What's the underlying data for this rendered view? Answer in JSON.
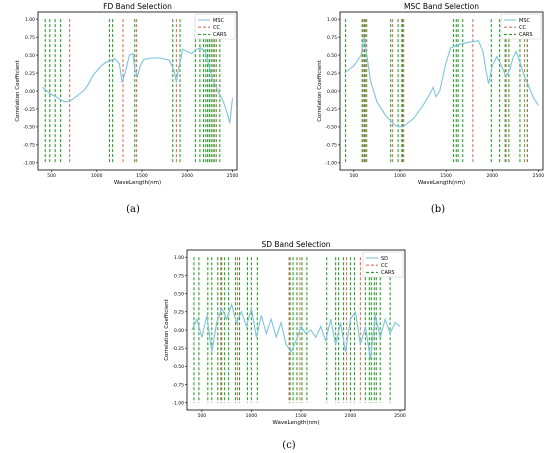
{
  "chart_data": [
    {
      "panel": "(a)",
      "type": "line",
      "title": "FD Band Selection",
      "xlabel": "WaveLength(nm)",
      "ylabel": "Correlation Coefficient",
      "xlim": [
        350,
        2550
      ],
      "ylim": [
        -1.1,
        1.1
      ],
      "xticks": [
        500,
        1000,
        1500,
        2000,
        2500
      ],
      "yticks": [
        1.0,
        0.75,
        0.5,
        0.25,
        0.0,
        -0.25,
        -0.5,
        -0.75,
        -1.0
      ],
      "legend": "top-right",
      "grid": false,
      "series": [
        {
          "name": "MSC",
          "kind": "curve",
          "color": "#7ec4dc",
          "points": [
            [
              400,
              0.05
            ],
            [
              450,
              0.0
            ],
            [
              500,
              -0.05
            ],
            [
              550,
              -0.08
            ],
            [
              600,
              -0.12
            ],
            [
              650,
              -0.15
            ],
            [
              700,
              -0.14
            ],
            [
              750,
              -0.1
            ],
            [
              800,
              -0.05
            ],
            [
              850,
              0.0
            ],
            [
              900,
              0.08
            ],
            [
              950,
              0.2
            ],
            [
              1000,
              0.28
            ],
            [
              1050,
              0.35
            ],
            [
              1100,
              0.4
            ],
            [
              1150,
              0.42
            ],
            [
              1200,
              0.45
            ],
            [
              1250,
              0.38
            ],
            [
              1280,
              0.12
            ],
            [
              1320,
              0.28
            ],
            [
              1360,
              0.5
            ],
            [
              1400,
              0.52
            ],
            [
              1420,
              0.3
            ],
            [
              1450,
              0.2
            ],
            [
              1480,
              0.35
            ],
            [
              1520,
              0.44
            ],
            [
              1600,
              0.46
            ],
            [
              1700,
              0.46
            ],
            [
              1800,
              0.43
            ],
            [
              1850,
              0.3
            ],
            [
              1880,
              0.12
            ],
            [
              1900,
              0.3
            ],
            [
              1930,
              0.45
            ],
            [
              1950,
              0.58
            ],
            [
              2000,
              0.55
            ],
            [
              2050,
              0.52
            ],
            [
              2100,
              0.58
            ],
            [
              2150,
              0.6
            ],
            [
              2200,
              0.55
            ],
            [
              2250,
              0.3
            ],
            [
              2280,
              0.15
            ],
            [
              2320,
              0.05
            ],
            [
              2360,
              -0.05
            ],
            [
              2400,
              -0.15
            ],
            [
              2440,
              -0.3
            ],
            [
              2470,
              -0.45
            ],
            [
              2500,
              -0.1
            ]
          ]
        },
        {
          "name": "CC",
          "kind": "vlines",
          "color": "#d8745a",
          "dashed": true,
          "x": [
            700,
            1290,
            1440,
            1880,
            2300
          ]
        },
        {
          "name": "CARS",
          "kind": "vlines",
          "color": "#2e9c30",
          "dashed": true,
          "x": [
            430,
            480,
            540,
            600,
            1140,
            1175,
            1420,
            1840,
            1920,
            2090,
            2140,
            2180,
            2205,
            2225,
            2245,
            2265,
            2285,
            2320,
            2360
          ]
        }
      ]
    },
    {
      "panel": "(b)",
      "type": "line",
      "title": "MSC Band Selection",
      "xlabel": "WaveLength(nm)",
      "ylabel": "Correlation Coefficient",
      "xlim": [
        350,
        2550
      ],
      "ylim": [
        -1.1,
        1.1
      ],
      "xticks": [
        500,
        1000,
        1500,
        2000,
        2500
      ],
      "yticks": [
        1.0,
        0.75,
        0.5,
        0.25,
        0.0,
        -0.25,
        -0.5,
        -0.75,
        -1.0
      ],
      "legend": "top-right",
      "grid": false,
      "series": [
        {
          "name": "MSC",
          "kind": "curve",
          "color": "#7ec4dc",
          "points": [
            [
              400,
              0.25
            ],
            [
              500,
              0.35
            ],
            [
              580,
              0.5
            ],
            [
              610,
              0.75
            ],
            [
              640,
              0.5
            ],
            [
              680,
              0.15
            ],
            [
              750,
              -0.15
            ],
            [
              850,
              -0.35
            ],
            [
              950,
              -0.48
            ],
            [
              1000,
              -0.5
            ],
            [
              1050,
              -0.48
            ],
            [
              1150,
              -0.38
            ],
            [
              1250,
              -0.2
            ],
            [
              1320,
              -0.05
            ],
            [
              1360,
              0.05
            ],
            [
              1390,
              -0.08
            ],
            [
              1430,
              0.0
            ],
            [
              1500,
              0.4
            ],
            [
              1550,
              0.6
            ],
            [
              1650,
              0.65
            ],
            [
              1750,
              0.68
            ],
            [
              1850,
              0.7
            ],
            [
              1900,
              0.55
            ],
            [
              1930,
              0.3
            ],
            [
              1960,
              0.1
            ],
            [
              2000,
              0.35
            ],
            [
              2050,
              0.48
            ],
            [
              2100,
              0.35
            ],
            [
              2150,
              0.2
            ],
            [
              2190,
              0.3
            ],
            [
              2230,
              0.48
            ],
            [
              2260,
              0.55
            ],
            [
              2300,
              0.4
            ],
            [
              2350,
              0.2
            ],
            [
              2400,
              0.05
            ],
            [
              2450,
              -0.1
            ],
            [
              2500,
              -0.2
            ]
          ]
        },
        {
          "name": "CC",
          "kind": "vlines",
          "color": "#d8745a",
          "dashed": true,
          "x": [
            600,
            640,
            920,
            1040,
            1790,
            2150,
            2350
          ]
        },
        {
          "name": "CARS",
          "kind": "vlines",
          "color": "#2e9c30",
          "dashed": true,
          "x": [
            410,
            590,
            615,
            630,
            900,
            980,
            1020,
            1030,
            1580,
            1610,
            1630,
            1680,
            1990,
            2080,
            2140,
            2180,
            2300,
            2380
          ]
        }
      ]
    },
    {
      "panel": "(c)",
      "type": "line",
      "title": "SD Band Selection",
      "xlabel": "WaveLength(nm)",
      "ylabel": "Correlation Coefficient",
      "xlim": [
        350,
        2550
      ],
      "ylim": [
        -1.1,
        1.1
      ],
      "xticks": [
        500,
        1000,
        1500,
        2000,
        2500
      ],
      "yticks": [
        1.0,
        0.75,
        0.5,
        0.25,
        0.0,
        -0.25,
        -0.5,
        -0.75,
        -1.0
      ],
      "legend": "top-right",
      "grid": false,
      "series": [
        {
          "name": "SD",
          "kind": "curve",
          "color": "#7ec4dc",
          "points": [
            [
              400,
              0.0
            ],
            [
              450,
              0.15
            ],
            [
              500,
              -0.1
            ],
            [
              550,
              0.2
            ],
            [
              600,
              -0.3
            ],
            [
              650,
              0.1
            ],
            [
              700,
              0.3
            ],
            [
              750,
              0.15
            ],
            [
              800,
              0.35
            ],
            [
              850,
              0.1
            ],
            [
              900,
              0.25
            ],
            [
              950,
              0.05
            ],
            [
              1000,
              0.3
            ],
            [
              1050,
              -0.1
            ],
            [
              1100,
              0.2
            ],
            [
              1150,
              -0.05
            ],
            [
              1200,
              0.15
            ],
            [
              1250,
              -0.1
            ],
            [
              1300,
              0.1
            ],
            [
              1350,
              -0.2
            ],
            [
              1400,
              -0.3
            ],
            [
              1450,
              -0.15
            ],
            [
              1500,
              0.05
            ],
            [
              1550,
              -0.05
            ],
            [
              1600,
              0.0
            ],
            [
              1650,
              -0.1
            ],
            [
              1700,
              0.05
            ],
            [
              1750,
              -0.15
            ],
            [
              1800,
              0.15
            ],
            [
              1850,
              -0.2
            ],
            [
              1900,
              0.1
            ],
            [
              1950,
              -0.3
            ],
            [
              2000,
              0.15
            ],
            [
              2050,
              0.25
            ],
            [
              2100,
              -0.2
            ],
            [
              2150,
              0.05
            ],
            [
              2200,
              -0.4
            ],
            [
              2250,
              0.2
            ],
            [
              2300,
              -0.1
            ],
            [
              2350,
              0.15
            ],
            [
              2400,
              -0.05
            ],
            [
              2450,
              0.1
            ],
            [
              2500,
              0.05
            ]
          ]
        },
        {
          "name": "CC",
          "kind": "vlines",
          "color": "#d8745a",
          "dashed": true,
          "x": [
            690,
            860,
            1380,
            1490,
            1960,
            2100
          ]
        },
        {
          "name": "CARS",
          "kind": "vlines",
          "color": "#2e9c30",
          "dashed": true,
          "x": [
            420,
            470,
            560,
            600,
            660,
            700,
            730,
            770,
            840,
            880,
            960,
            1000,
            1060,
            1390,
            1420,
            1460,
            1510,
            1560,
            1760,
            1850,
            1880,
            1930,
            2000,
            2040,
            2150,
            2190,
            2210,
            2240,
            2260,
            2300,
            2400
          ]
        }
      ]
    }
  ]
}
